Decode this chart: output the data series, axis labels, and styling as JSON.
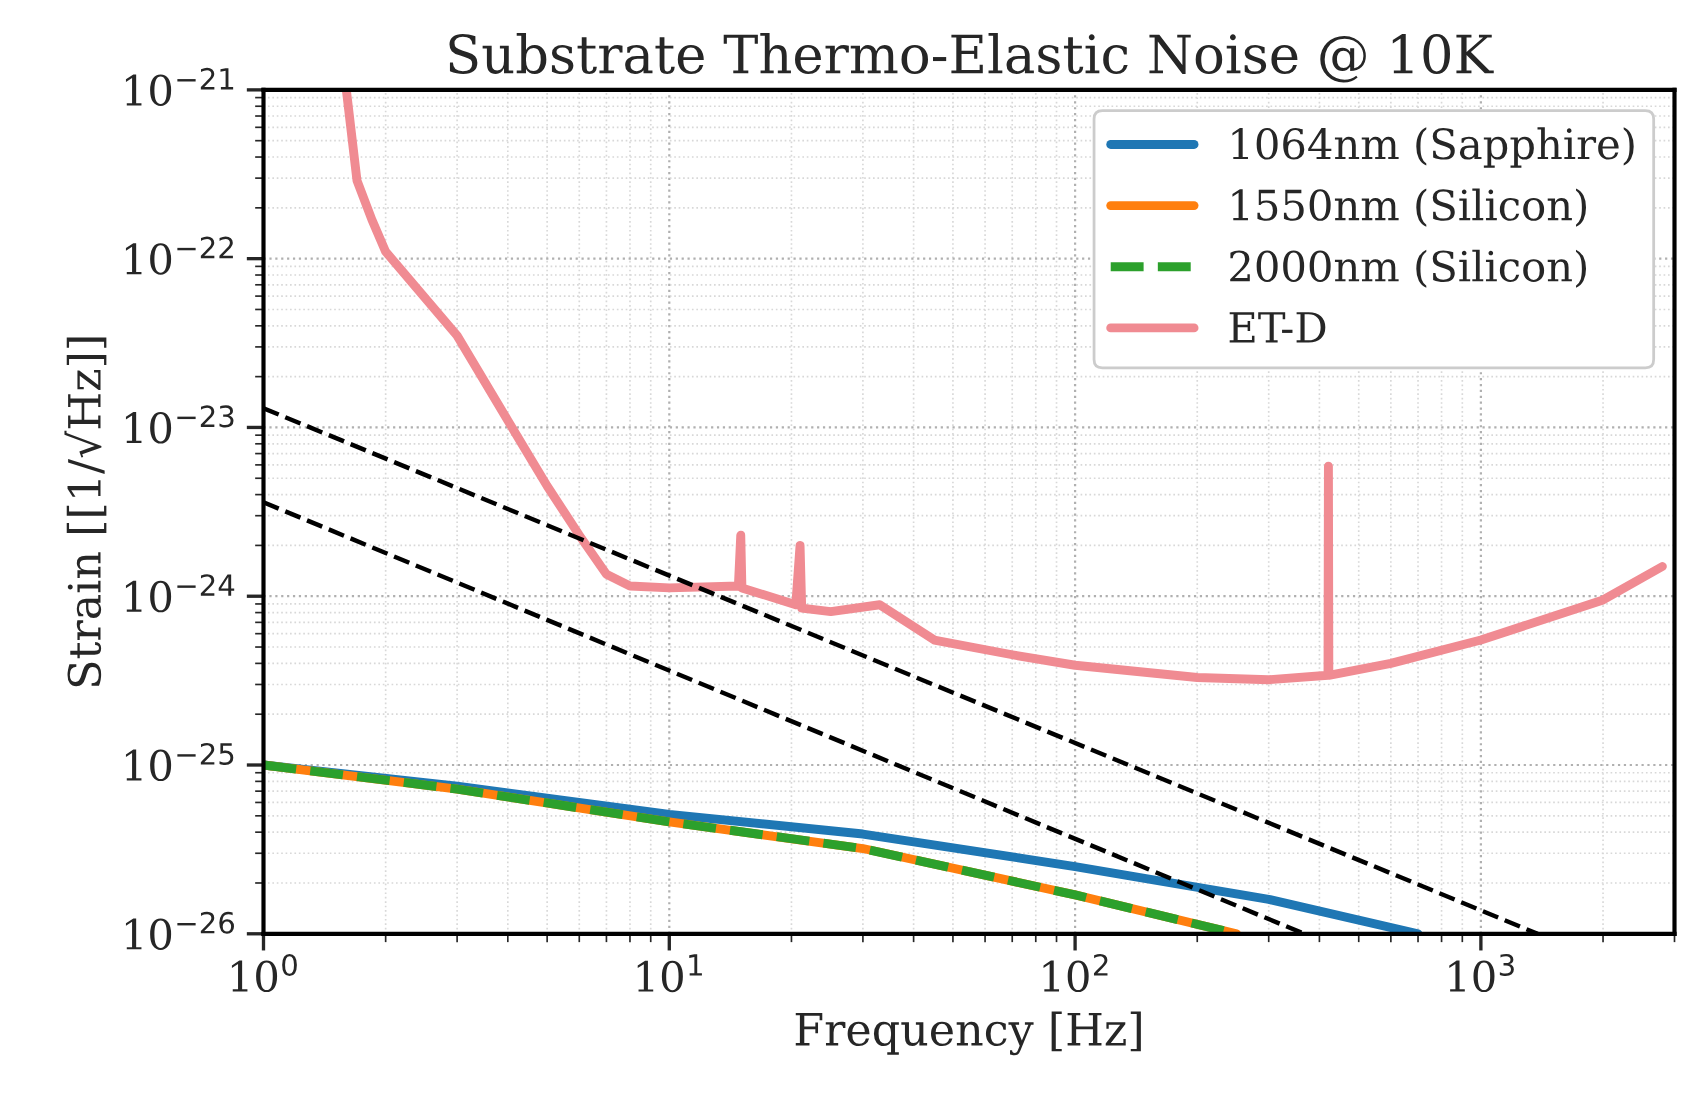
{
  "chart_data": {
    "type": "line",
    "title": "Substrate Thermo-Elastic Noise @ 10K",
    "xlabel": "Frequency [Hz]",
    "ylabel": "Strain [[1/√Hz]]",
    "log": "xy",
    "grid": true,
    "legend": "top right",
    "xlim": [
      1,
      3000
    ],
    "ylim": [
      1e-26,
      1e-21
    ],
    "xticks": [
      {
        "value": 1,
        "label": "10$^{0}$"
      },
      {
        "value": 10,
        "label": "10$^{1}$"
      },
      {
        "value": 100,
        "label": "10$^{2}$"
      },
      {
        "value": 1000,
        "label": "10$^{3}$"
      }
    ],
    "yticks": [
      {
        "value": 1e-26,
        "label": "10$^{−26}$"
      },
      {
        "value": 1e-25,
        "label": "10$^{−25}$"
      },
      {
        "value": 1e-24,
        "label": "10$^{−24}$"
      },
      {
        "value": 1e-23,
        "label": "10$^{−23}$"
      },
      {
        "value": 1e-22,
        "label": "10$^{−22}$"
      },
      {
        "value": 1e-21,
        "label": "10$^{−21}$"
      }
    ],
    "series": [
      {
        "name": "1064nm (Sapphire)",
        "color": "#1f77b4",
        "line_style": "solid",
        "x": [
          1,
          3,
          10,
          30,
          100,
          300,
          700
        ],
        "values": [
          1e-25,
          7.5e-26,
          5.1e-26,
          3.9e-26,
          2.5e-26,
          1.6e-26,
          1e-26
        ]
      },
      {
        "name": "1550nm (Silicon)",
        "color": "#ff7f0e",
        "line_style": "solid",
        "x": [
          1,
          3,
          10,
          30,
          100,
          250
        ],
        "values": [
          1e-25,
          7.2e-26,
          4.6e-26,
          3.2e-26,
          1.7e-26,
          1e-26
        ]
      },
      {
        "name": "2000nm (Silicon)",
        "color": "#2ca02c",
        "line_style": "dashed",
        "x": [
          1,
          3,
          10,
          30,
          100,
          250
        ],
        "values": [
          1e-25,
          7.2e-26,
          4.6e-26,
          3.2e-26,
          1.7e-26,
          1e-26
        ]
      },
      {
        "name": "ET-D",
        "color": "#f08b92",
        "line_style": "solid",
        "x": [
          1.6,
          1.7,
          1.85,
          2,
          3,
          4,
          5,
          6,
          7,
          8,
          10,
          14.8,
          15,
          15.1,
          20.5,
          21,
          21.2,
          25,
          33,
          45,
          70,
          100,
          200,
          300,
          420,
          421,
          422,
          600,
          1000,
          2000,
          2800
        ],
        "values": [
          1e-21,
          2.9e-22,
          1.7e-22,
          1.1e-22,
          3.5e-23,
          1.1e-23,
          4.5e-24,
          2.3e-24,
          1.35e-24,
          1.15e-24,
          1.12e-24,
          1.15e-24,
          2.3e-24,
          1.12e-24,
          8.9e-25,
          2e-24,
          8.5e-25,
          8.1e-25,
          8.9e-25,
          5.5e-25,
          4.5e-25,
          3.9e-25,
          3.3e-25,
          3.2e-25,
          3.4e-25,
          5.9e-24,
          3.4e-25,
          4e-25,
          5.5e-25,
          9.5e-25,
          1.5e-24
        ]
      },
      {
        "color": "#000000",
        "line_style": "dashed",
        "x": [
          1,
          1380
        ],
        "values": [
          1.3e-23,
          1e-26
        ]
      },
      {
        "color": "#000000",
        "line_style": "dashed",
        "x": [
          1,
          367
        ],
        "values": [
          3.6e-24,
          1e-26
        ]
      }
    ]
  }
}
